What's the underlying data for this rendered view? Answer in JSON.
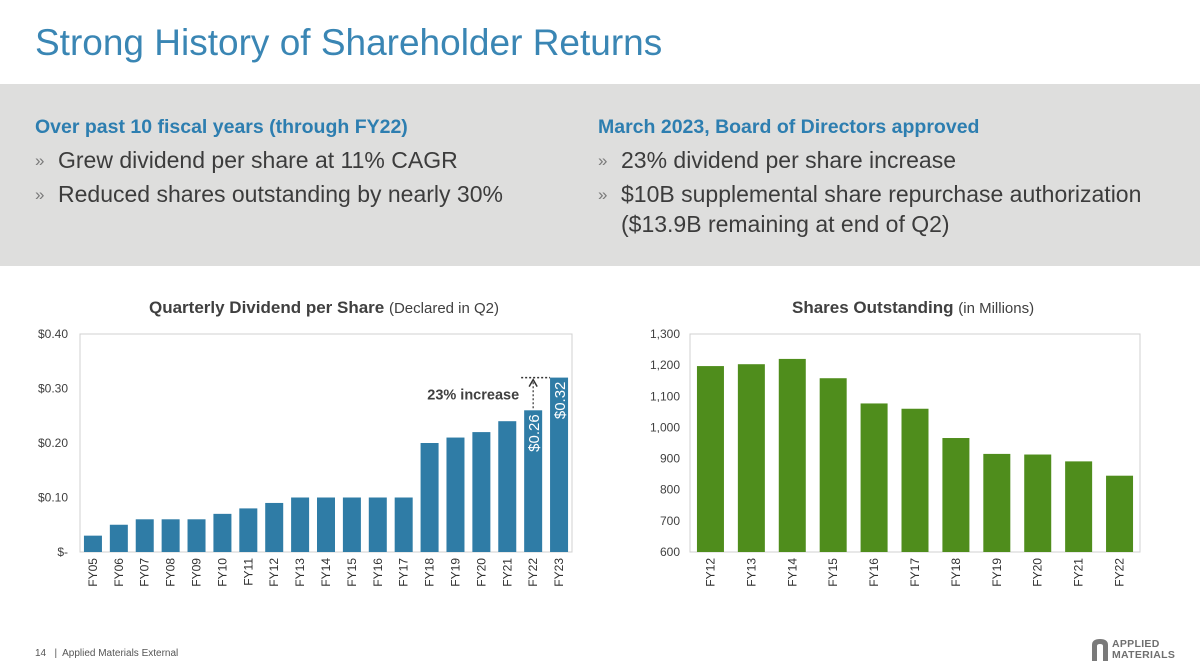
{
  "slide": {
    "title": "Strong History of Shareholder Returns",
    "left": {
      "heading": "Over past 10 fiscal years (through FY22)",
      "bullets": [
        "Grew dividend per share at 11% CAGR",
        "Reduced shares outstanding by nearly 30%"
      ]
    },
    "right": {
      "heading": "March 2023, Board of Directors approved",
      "bullets": [
        "23% dividend per share increase",
        "$10B supplemental share repurchase authorization ($13.9B remaining at end of Q2)"
      ]
    },
    "bullet_marker": "»",
    "footer": {
      "page": "14",
      "separator": "|",
      "label": "Applied Materials External"
    },
    "logo": {
      "line1": "APPLIED",
      "line2": "MATERIALS"
    }
  },
  "colors": {
    "title": "#3a86b4",
    "heading": "#2d7eb0",
    "band": "#dededd",
    "dividend_bar": "#2f7ca6",
    "shares_bar": "#4f8d1c"
  },
  "chart_data": [
    {
      "type": "bar",
      "title": "Quarterly Dividend per Share",
      "subtitle": "(Declared in Q2)",
      "categories": [
        "FY05",
        "FY06",
        "FY07",
        "FY08",
        "FY09",
        "FY10",
        "FY11",
        "FY12",
        "FY13",
        "FY14",
        "FY15",
        "FY16",
        "FY17",
        "FY18",
        "FY19",
        "FY20",
        "FY21",
        "FY22",
        "FY23"
      ],
      "values": [
        0.03,
        0.05,
        0.06,
        0.06,
        0.06,
        0.07,
        0.08,
        0.09,
        0.1,
        0.1,
        0.1,
        0.1,
        0.1,
        0.2,
        0.21,
        0.22,
        0.24,
        0.26,
        0.32
      ],
      "ylim": [
        0,
        0.4
      ],
      "yticks": [
        0,
        0.1,
        0.2,
        0.3,
        0.4
      ],
      "ytick_labels": [
        "$-",
        "$0.10",
        "$0.20",
        "$0.30",
        "$0.40"
      ],
      "data_labels": [
        {
          "category": "FY22",
          "text": "$0.26"
        },
        {
          "category": "FY23",
          "text": "$0.32"
        }
      ],
      "annotation": "23% increase",
      "grid": false
    },
    {
      "type": "bar",
      "title": "Shares Outstanding",
      "subtitle": "(in Millions)",
      "categories": [
        "FY12",
        "FY13",
        "FY14",
        "FY15",
        "FY16",
        "FY17",
        "FY18",
        "FY19",
        "FY20",
        "FY21",
        "FY22"
      ],
      "values": [
        1197,
        1203,
        1220,
        1158,
        1077,
        1060,
        966,
        915,
        913,
        891,
        845
      ],
      "ylim": [
        600,
        1300
      ],
      "yticks": [
        600,
        700,
        800,
        900,
        1000,
        1100,
        1200,
        1300
      ],
      "ytick_labels": [
        "600",
        "700",
        "800",
        "900",
        "1,000",
        "1,100",
        "1,200",
        "1,300"
      ],
      "grid": false
    }
  ]
}
